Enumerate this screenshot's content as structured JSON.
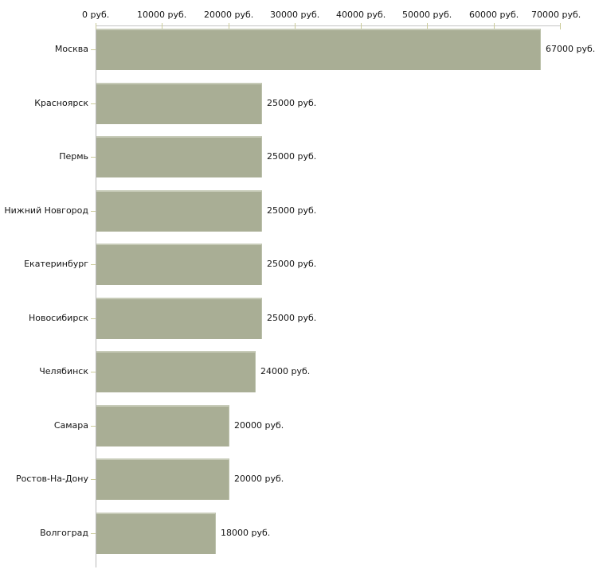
{
  "chart_data": {
    "type": "bar",
    "orientation": "horizontal",
    "title": "",
    "xlabel": "",
    "ylabel": "",
    "unit": "руб.",
    "grid": false,
    "legend": false,
    "categories": [
      "Москва",
      "Красноярск",
      "Пермь",
      "Нижний Новгород",
      "Екатеринбург",
      "Новосибирск",
      "Челябинск",
      "Самара",
      "Ростов-На-Дону",
      "Волгоград"
    ],
    "values": [
      67000,
      25000,
      25000,
      25000,
      25000,
      25000,
      24000,
      20000,
      20000,
      18000
    ],
    "value_labels": [
      "67000 руб.",
      "25000 руб.",
      "25000 руб.",
      "25000 руб.",
      "25000 руб.",
      "25000 руб.",
      "24000 руб.",
      "20000 руб.",
      "20000 руб.",
      "18000 руб."
    ],
    "xlim": [
      0,
      70000
    ],
    "x_ticks": [
      0,
      10000,
      20000,
      30000,
      40000,
      50000,
      60000,
      70000
    ],
    "x_tick_labels": [
      "0 руб.",
      "10000 руб.",
      "20000 руб.",
      "30000 руб.",
      "40000 руб.",
      "50000 руб.",
      "60000 руб.",
      "70000 руб."
    ]
  },
  "colors": {
    "background": "#ffffff",
    "bar_fill": "#a9ae95",
    "bar_highlight": "#c7cbb8",
    "axis_line": "#c3c3c3",
    "tick_mark": "#cbcb9a",
    "text": "#141414"
  }
}
